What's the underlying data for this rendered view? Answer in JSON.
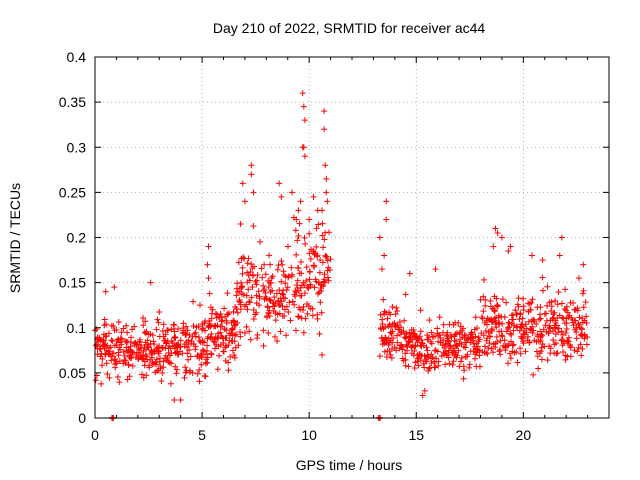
{
  "chart_data": {
    "type": "scatter",
    "title": "Day 210 of 2022, SRMTID for receiver ac44",
    "xlabel": "GPS time / hours",
    "ylabel": "SRMTID / TECUs",
    "xlim": [
      0,
      24
    ],
    "ylim": [
      0,
      0.4
    ],
    "xticks": [
      0,
      5,
      10,
      15,
      20
    ],
    "xtick_labels": [
      "0",
      "5",
      "10",
      "15",
      "20"
    ],
    "yticks": [
      0,
      0.05,
      0.1,
      0.15,
      0.2,
      0.25,
      0.3,
      0.35,
      0.4
    ],
    "ytick_labels": [
      "0",
      "0.05",
      "0.1",
      "0.15",
      "0.2",
      "0.25",
      "0.3",
      "0.35",
      "0.4"
    ],
    "grid": true,
    "series": [
      {
        "name": "SRMTID",
        "color": "#ff0000",
        "marker": "plus",
        "segments": [
          {
            "x_start": 0.0,
            "x_end": 1.0,
            "mean": 0.08,
            "spread": 0.03
          },
          {
            "x_start": 1.0,
            "x_end": 4.0,
            "mean": 0.075,
            "spread": 0.03
          },
          {
            "x_start": 4.0,
            "x_end": 5.3,
            "mean": 0.08,
            "spread": 0.03
          },
          {
            "x_start": 5.3,
            "x_end": 6.6,
            "mean": 0.095,
            "spread": 0.03
          },
          {
            "x_start": 6.6,
            "x_end": 8.0,
            "mean": 0.14,
            "spread": 0.045
          },
          {
            "x_start": 8.0,
            "x_end": 9.0,
            "mean": 0.13,
            "spread": 0.04
          },
          {
            "x_start": 9.0,
            "x_end": 11.0,
            "mean": 0.16,
            "spread": 0.05
          },
          {
            "x_start": 13.3,
            "x_end": 14.5,
            "mean": 0.09,
            "spread": 0.03
          },
          {
            "x_start": 14.5,
            "x_end": 18.0,
            "mean": 0.08,
            "spread": 0.025
          },
          {
            "x_start": 18.0,
            "x_end": 20.0,
            "mean": 0.1,
            "spread": 0.035
          },
          {
            "x_start": 20.0,
            "x_end": 23.0,
            "mean": 0.1,
            "spread": 0.035
          }
        ],
        "outliers": [
          {
            "x": 9.7,
            "y": 0.36
          },
          {
            "x": 9.75,
            "y": 0.345
          },
          {
            "x": 9.8,
            "y": 0.33
          },
          {
            "x": 9.7,
            "y": 0.3
          },
          {
            "x": 9.75,
            "y": 0.3
          },
          {
            "x": 9.8,
            "y": 0.29
          },
          {
            "x": 10.7,
            "y": 0.34
          },
          {
            "x": 10.7,
            "y": 0.32
          },
          {
            "x": 10.75,
            "y": 0.28
          },
          {
            "x": 10.8,
            "y": 0.265
          },
          {
            "x": 10.8,
            "y": 0.25
          },
          {
            "x": 10.85,
            "y": 0.24
          },
          {
            "x": 10.6,
            "y": 0.23
          },
          {
            "x": 7.3,
            "y": 0.28
          },
          {
            "x": 7.3,
            "y": 0.27
          },
          {
            "x": 7.4,
            "y": 0.25
          },
          {
            "x": 6.9,
            "y": 0.26
          },
          {
            "x": 7.0,
            "y": 0.24
          },
          {
            "x": 6.8,
            "y": 0.215
          },
          {
            "x": 8.6,
            "y": 0.26
          },
          {
            "x": 8.7,
            "y": 0.245
          },
          {
            "x": 9.2,
            "y": 0.25
          },
          {
            "x": 9.4,
            "y": 0.22
          },
          {
            "x": 9.5,
            "y": 0.23
          },
          {
            "x": 9.6,
            "y": 0.24
          },
          {
            "x": 10.0,
            "y": 0.22
          },
          {
            "x": 10.2,
            "y": 0.245
          },
          {
            "x": 10.4,
            "y": 0.23
          },
          {
            "x": 5.3,
            "y": 0.19
          },
          {
            "x": 5.25,
            "y": 0.17
          },
          {
            "x": 5.3,
            "y": 0.155
          },
          {
            "x": 13.6,
            "y": 0.24
          },
          {
            "x": 13.6,
            "y": 0.22
          },
          {
            "x": 13.3,
            "y": 0.2
          },
          {
            "x": 13.5,
            "y": 0.18
          },
          {
            "x": 13.4,
            "y": 0.165
          },
          {
            "x": 18.7,
            "y": 0.21
          },
          {
            "x": 18.8,
            "y": 0.205
          },
          {
            "x": 19.0,
            "y": 0.2
          },
          {
            "x": 19.4,
            "y": 0.19
          },
          {
            "x": 19.3,
            "y": 0.185
          },
          {
            "x": 18.6,
            "y": 0.19
          },
          {
            "x": 21.8,
            "y": 0.2
          },
          {
            "x": 21.7,
            "y": 0.18
          },
          {
            "x": 20.4,
            "y": 0.18
          },
          {
            "x": 20.9,
            "y": 0.175
          },
          {
            "x": 22.8,
            "y": 0.17
          },
          {
            "x": 22.6,
            "y": 0.155
          },
          {
            "x": 0.9,
            "y": 0.145
          },
          {
            "x": 0.5,
            "y": 0.14
          },
          {
            "x": 2.6,
            "y": 0.15
          },
          {
            "x": 15.9,
            "y": 0.165
          },
          {
            "x": 14.7,
            "y": 0.16
          },
          {
            "x": 10.6,
            "y": 0.07
          },
          {
            "x": 4.0,
            "y": 0.02
          },
          {
            "x": 3.7,
            "y": 0.02
          },
          {
            "x": 15.3,
            "y": 0.025
          },
          {
            "x": 15.4,
            "y": 0.03
          }
        ]
      }
    ],
    "zero_points": [
      {
        "x": 0.8,
        "y": 0.0
      },
      {
        "x": 0.85,
        "y": 0.0
      },
      {
        "x": 13.25,
        "y": 0.0
      },
      {
        "x": 13.3,
        "y": 0.0
      }
    ]
  }
}
